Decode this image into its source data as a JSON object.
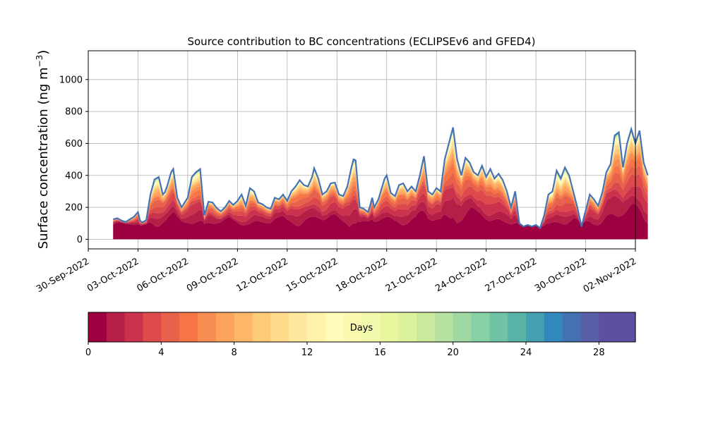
{
  "chart_data": [
    {
      "type": "area",
      "stacked": true,
      "title": "Source contribution to BC concentrations (ECLIPSEv6 and GFED4)",
      "ylabel_main": "Surface concentration (ng m",
      "ylabel_sup": "−3",
      "ylabel_close": ")",
      "grid": true,
      "x_start": "2022-10-01T12:00",
      "x_step_hours": 3,
      "xlim": [
        "2022-09-30T00:00",
        "2022-11-02T00:00"
      ],
      "ylim": [
        -60,
        1180
      ],
      "xtick_labels": [
        "30-Sep-2022",
        "03-Oct-2022",
        "06-Oct-2022",
        "09-Oct-2022",
        "12-Oct-2022",
        "15-Oct-2022",
        "18-Oct-2022",
        "21-Oct-2022",
        "24-Oct-2022",
        "27-Oct-2022",
        "30-Oct-2022",
        "02-Nov-2022"
      ],
      "xtick_dates": [
        "2022-09-30",
        "2022-10-03",
        "2022-10-06",
        "2022-10-09",
        "2022-10-12",
        "2022-10-15",
        "2022-10-18",
        "2022-10-21",
        "2022-10-24",
        "2022-10-27",
        "2022-10-30",
        "2022-11-02"
      ],
      "ytick_values": [
        0,
        200,
        400,
        600,
        800,
        1000
      ],
      "ytick_labels": [
        "0",
        "200",
        "400",
        "600",
        "800",
        "1000"
      ],
      "total_keypoints": [
        [
          "2022-10-01T12:00",
          125
        ],
        [
          "2022-10-01T18:00",
          132
        ],
        [
          "2022-10-02T00:00",
          118
        ],
        [
          "2022-10-02T06:00",
          108
        ],
        [
          "2022-10-02T12:00",
          125
        ],
        [
          "2022-10-02T18:00",
          140
        ],
        [
          "2022-10-03T00:00",
          170
        ],
        [
          "2022-10-03T04:00",
          100
        ],
        [
          "2022-10-03T12:00",
          120
        ],
        [
          "2022-10-03T18:00",
          280
        ],
        [
          "2022-10-04T00:00",
          375
        ],
        [
          "2022-10-04T06:00",
          390
        ],
        [
          "2022-10-04T12:00",
          280
        ],
        [
          "2022-10-04T16:00",
          300
        ],
        [
          "2022-10-05T00:00",
          420
        ],
        [
          "2022-10-05T03:00",
          440
        ],
        [
          "2022-10-05T09:00",
          260
        ],
        [
          "2022-10-05T15:00",
          200
        ],
        [
          "2022-10-06T00:00",
          260
        ],
        [
          "2022-10-06T06:00",
          390
        ],
        [
          "2022-10-06T12:00",
          420
        ],
        [
          "2022-10-06T18:00",
          440
        ],
        [
          "2022-10-07T00:00",
          150
        ],
        [
          "2022-10-07T06:00",
          235
        ],
        [
          "2022-10-07T12:00",
          230
        ],
        [
          "2022-10-07T18:00",
          195
        ],
        [
          "2022-10-08T00:00",
          175
        ],
        [
          "2022-10-08T06:00",
          200
        ],
        [
          "2022-10-08T12:00",
          240
        ],
        [
          "2022-10-08T18:00",
          215
        ],
        [
          "2022-10-09T00:00",
          240
        ],
        [
          "2022-10-09T06:00",
          280
        ],
        [
          "2022-10-09T12:00",
          210
        ],
        [
          "2022-10-09T18:00",
          320
        ],
        [
          "2022-10-10T00:00",
          300
        ],
        [
          "2022-10-10T06:00",
          230
        ],
        [
          "2022-10-10T12:00",
          220
        ],
        [
          "2022-10-10T18:00",
          200
        ],
        [
          "2022-10-11T00:00",
          190
        ],
        [
          "2022-10-11T06:00",
          260
        ],
        [
          "2022-10-11T12:00",
          250
        ],
        [
          "2022-10-11T18:00",
          280
        ],
        [
          "2022-10-12T00:00",
          240
        ],
        [
          "2022-10-12T06:00",
          300
        ],
        [
          "2022-10-12T12:00",
          330
        ],
        [
          "2022-10-12T18:00",
          370
        ],
        [
          "2022-10-13T00:00",
          340
        ],
        [
          "2022-10-13T06:00",
          330
        ],
        [
          "2022-10-13T12:00",
          390
        ],
        [
          "2022-10-13T15:00",
          445
        ],
        [
          "2022-10-13T21:00",
          380
        ],
        [
          "2022-10-14T03:00",
          280
        ],
        [
          "2022-10-14T09:00",
          300
        ],
        [
          "2022-10-14T15:00",
          350
        ],
        [
          "2022-10-14T21:00",
          355
        ],
        [
          "2022-10-15T03:00",
          280
        ],
        [
          "2022-10-15T09:00",
          270
        ],
        [
          "2022-10-15T15:00",
          330
        ],
        [
          "2022-10-15T21:00",
          450
        ],
        [
          "2022-10-16T00:00",
          500
        ],
        [
          "2022-10-16T03:00",
          495
        ],
        [
          "2022-10-16T09:00",
          200
        ],
        [
          "2022-10-16T15:00",
          190
        ],
        [
          "2022-10-16T21:00",
          170
        ],
        [
          "2022-10-17T00:00",
          210
        ],
        [
          "2022-10-17T03:00",
          260
        ],
        [
          "2022-10-17T06:00",
          200
        ],
        [
          "2022-10-17T12:00",
          250
        ],
        [
          "2022-10-17T21:00",
          380
        ],
        [
          "2022-10-18T00:00",
          400
        ],
        [
          "2022-10-18T06:00",
          290
        ],
        [
          "2022-10-18T12:00",
          270
        ],
        [
          "2022-10-18T18:00",
          340
        ],
        [
          "2022-10-19T00:00",
          350
        ],
        [
          "2022-10-19T06:00",
          300
        ],
        [
          "2022-10-19T12:00",
          330
        ],
        [
          "2022-10-19T18:00",
          300
        ],
        [
          "2022-10-20T00:00",
          400
        ],
        [
          "2022-10-20T06:00",
          520
        ],
        [
          "2022-10-20T12:00",
          300
        ],
        [
          "2022-10-20T18:00",
          280
        ],
        [
          "2022-10-21T00:00",
          320
        ],
        [
          "2022-10-21T06:00",
          300
        ],
        [
          "2022-10-21T12:00",
          500
        ],
        [
          "2022-10-21T18:00",
          600
        ],
        [
          "2022-10-22T00:00",
          700
        ],
        [
          "2022-10-22T06:00",
          500
        ],
        [
          "2022-10-22T12:00",
          400
        ],
        [
          "2022-10-22T18:00",
          510
        ],
        [
          "2022-10-23T00:00",
          480
        ],
        [
          "2022-10-23T06:00",
          420
        ],
        [
          "2022-10-23T12:00",
          400
        ],
        [
          "2022-10-23T18:00",
          460
        ],
        [
          "2022-10-24T00:00",
          390
        ],
        [
          "2022-10-24T06:00",
          440
        ],
        [
          "2022-10-24T12:00",
          380
        ],
        [
          "2022-10-24T18:00",
          410
        ],
        [
          "2022-10-25T00:00",
          370
        ],
        [
          "2022-10-25T06:00",
          300
        ],
        [
          "2022-10-25T12:00",
          200
        ],
        [
          "2022-10-25T18:00",
          300
        ],
        [
          "2022-10-26T00:00",
          100
        ],
        [
          "2022-10-26T06:00",
          80
        ],
        [
          "2022-10-26T12:00",
          90
        ],
        [
          "2022-10-26T18:00",
          80
        ],
        [
          "2022-10-27T00:00",
          90
        ],
        [
          "2022-10-27T06:00",
          70
        ],
        [
          "2022-10-27T12:00",
          150
        ],
        [
          "2022-10-27T18:00",
          280
        ],
        [
          "2022-10-28T00:00",
          300
        ],
        [
          "2022-10-28T06:00",
          430
        ],
        [
          "2022-10-28T12:00",
          380
        ],
        [
          "2022-10-28T18:00",
          450
        ],
        [
          "2022-10-29T00:00",
          400
        ],
        [
          "2022-10-29T06:00",
          300
        ],
        [
          "2022-10-29T12:00",
          200
        ],
        [
          "2022-10-29T18:00",
          80
        ],
        [
          "2022-10-30T00:00",
          180
        ],
        [
          "2022-10-30T06:00",
          280
        ],
        [
          "2022-10-30T12:00",
          250
        ],
        [
          "2022-10-30T18:00",
          210
        ],
        [
          "2022-10-31T00:00",
          290
        ],
        [
          "2022-10-31T06:00",
          420
        ],
        [
          "2022-10-31T12:00",
          470
        ],
        [
          "2022-10-31T18:00",
          650
        ],
        [
          "2022-11-01T00:00",
          670
        ],
        [
          "2022-11-01T06:00",
          450
        ],
        [
          "2022-11-01T12:00",
          600
        ],
        [
          "2022-11-01T18:00",
          690
        ],
        [
          "2022-11-02T00:00",
          600
        ],
        [
          "2022-11-02T06:00",
          680
        ],
        [
          "2022-11-02T12:00",
          480
        ],
        [
          "2022-11-02T18:00",
          400
        ]
      ],
      "colorbar": {
        "label": "Days",
        "min": 0,
        "max": 30,
        "n_bins": 30,
        "tick_values": [
          0,
          4,
          8,
          12,
          16,
          20,
          24,
          28
        ],
        "tick_labels": [
          "0",
          "4",
          "8",
          "12",
          "16",
          "20",
          "24",
          "28"
        ],
        "colors": [
          "#9e0142",
          "#b51f47",
          "#cb334c",
          "#dc4a4c",
          "#e8614b",
          "#f57547",
          "#f88d51",
          "#fca35d",
          "#fdb766",
          "#fdca78",
          "#fedc8c",
          "#fee89e",
          "#fff3ab",
          "#fffcbb",
          "#fbf8b0",
          "#f4faad",
          "#eaf69e",
          "#dbf19b",
          "#cbe99d",
          "#b6e1a1",
          "#a0d8a4",
          "#87cfa4",
          "#70c4a5",
          "#5ab3a7",
          "#449fb0",
          "#3288bd",
          "#4471b2",
          "#5a60a8",
          "#5e4fa2",
          "#5e4fa2"
        ]
      }
    }
  ]
}
